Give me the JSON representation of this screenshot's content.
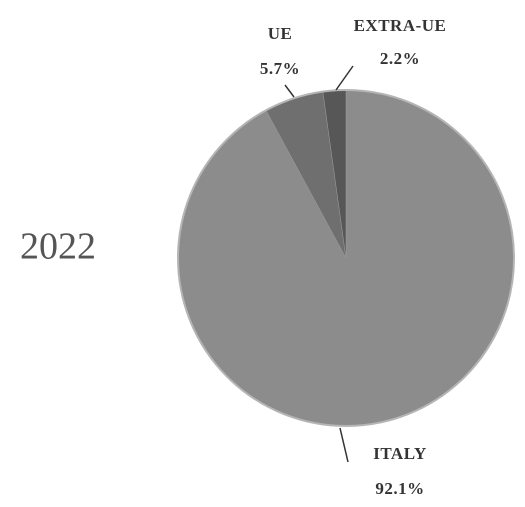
{
  "chart_data": {
    "type": "pie",
    "title": "2022",
    "categories": [
      "ITALY",
      "UE",
      "EXTRA-UE"
    ],
    "values": [
      92.1,
      5.7,
      2.2
    ],
    "value_labels": [
      "92.1%",
      "5.7%",
      "2.2%"
    ],
    "colors": [
      "#8c8c8c",
      "#6f6f6f",
      "#575757"
    ]
  }
}
